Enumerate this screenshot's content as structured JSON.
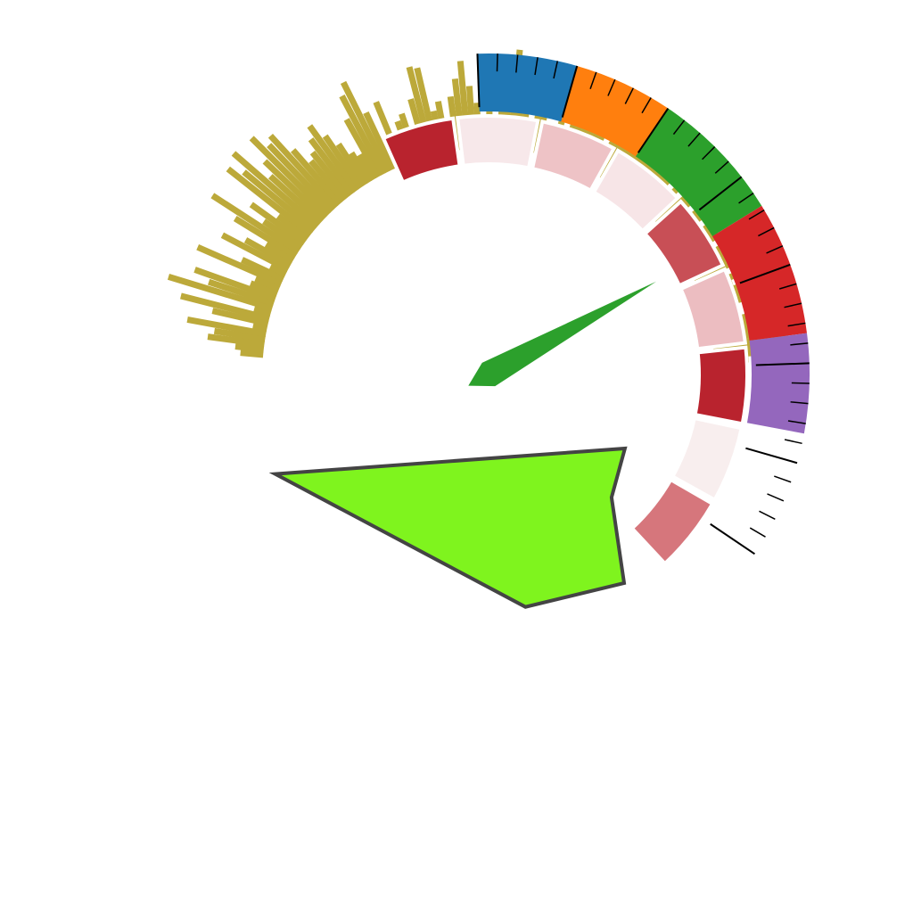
{
  "chart_data": {
    "type": "gauge",
    "title": "",
    "range": [
      0,
      100
    ],
    "outer_bands": [
      {
        "from": 0,
        "to": 10,
        "color": "#1f77b4"
      },
      {
        "from": 10,
        "to": 20,
        "color": "#ff7f0e"
      },
      {
        "from": 20,
        "to": 33.5,
        "color": "#2ca02c"
      },
      {
        "from": 33.5,
        "to": 47,
        "color": "#d62728"
      },
      {
        "from": 47,
        "to": 57,
        "color": "#9467bd"
      }
    ],
    "major_ticks": [
      0,
      10,
      20,
      30,
      40,
      50,
      60,
      70
    ],
    "minor_tick_step": 2,
    "inner_segments": [
      {
        "from": -12.5,
        "to": -3,
        "color": "#b9232e"
      },
      {
        "from": -3,
        "to": 7.5,
        "color": "#f7e8ea"
      },
      {
        "from": 7.5,
        "to": 17.5,
        "color": "#eec3c6"
      },
      {
        "from": 17.5,
        "to": 27.5,
        "color": "#f7e5e7"
      },
      {
        "from": 27.5,
        "to": 37.5,
        "color": "#c84f56"
      },
      {
        "from": 37.5,
        "to": 47.5,
        "color": "#ecbdc1"
      },
      {
        "from": 47.5,
        "to": 57.5,
        "color": "#b9232e"
      },
      {
        "from": 57.5,
        "to": 67.5,
        "color": "#f8eeee"
      },
      {
        "from": 67.5,
        "to": 77.5,
        "color": "#d6767c"
      }
    ],
    "needle_value": 35,
    "radar_polygon": {
      "fill": "#7ff41e",
      "stroke": "#444444",
      "points": [
        [
          28.5,
          0.58
        ],
        [
          45,
          0.65
        ],
        [
          57,
          0.93
        ],
        [
          81,
          0.88
        ],
        [
          155,
          0.88
        ]
      ]
    },
    "radial_bars": {
      "color": "#bca93a",
      "start_angle": 185,
      "end_angle": 358,
      "baseline_radius": 0.47,
      "values": [
        0.16,
        0.2,
        0.4,
        0.36,
        0.56,
        0.1,
        0.4,
        0.64,
        0.12,
        0.76,
        0.48,
        0.6,
        0.2,
        0.18,
        0.64,
        0.32,
        0.12,
        0.52,
        0.36,
        0.22,
        0.5,
        0.72,
        0.32,
        0.46,
        0.26,
        0.74,
        0.64,
        0.78,
        0.48,
        0.58,
        0.76,
        0.64,
        0.68,
        0.5,
        0.36,
        0.4,
        0.48,
        0.56,
        0.44,
        0.34,
        0.24,
        0.2,
        0.46,
        0.62,
        0.7,
        0.44,
        0.1,
        0.48,
        0.2,
        0.3,
        0.34,
        0.08,
        0.42,
        0.64,
        0.62,
        0.3,
        0.36,
        0.22,
        0.38,
        0.5,
        0.62,
        0.44,
        0.32,
        0.14,
        0.28,
        0.1,
        0.36,
        0.56,
        0.7,
        0.62,
        0.3,
        0.22,
        0.6,
        0.38,
        0.2,
        0.12,
        0.3,
        0.18,
        0.42,
        0.6,
        0.4,
        0.66,
        0.32,
        0.26,
        0.08,
        0.54,
        0.34,
        0.62,
        0.4,
        0.54,
        0.46,
        0.58,
        0.62,
        0.48,
        0.38,
        0.56,
        0.3,
        0.16,
        0.36,
        0.22,
        0.58,
        0.44,
        0.2,
        0.46,
        0.5,
        0.12,
        0.36,
        0.64,
        0.3,
        0.18,
        0.36,
        0.32,
        0.5,
        0.62,
        0.2,
        0.42,
        0.24,
        0.48,
        0.56,
        0.3,
        0.2,
        0.14,
        0.58,
        0.46,
        0.32,
        0.3,
        0.52,
        0.62,
        0.42,
        0.24,
        0.14
      ]
    }
  }
}
